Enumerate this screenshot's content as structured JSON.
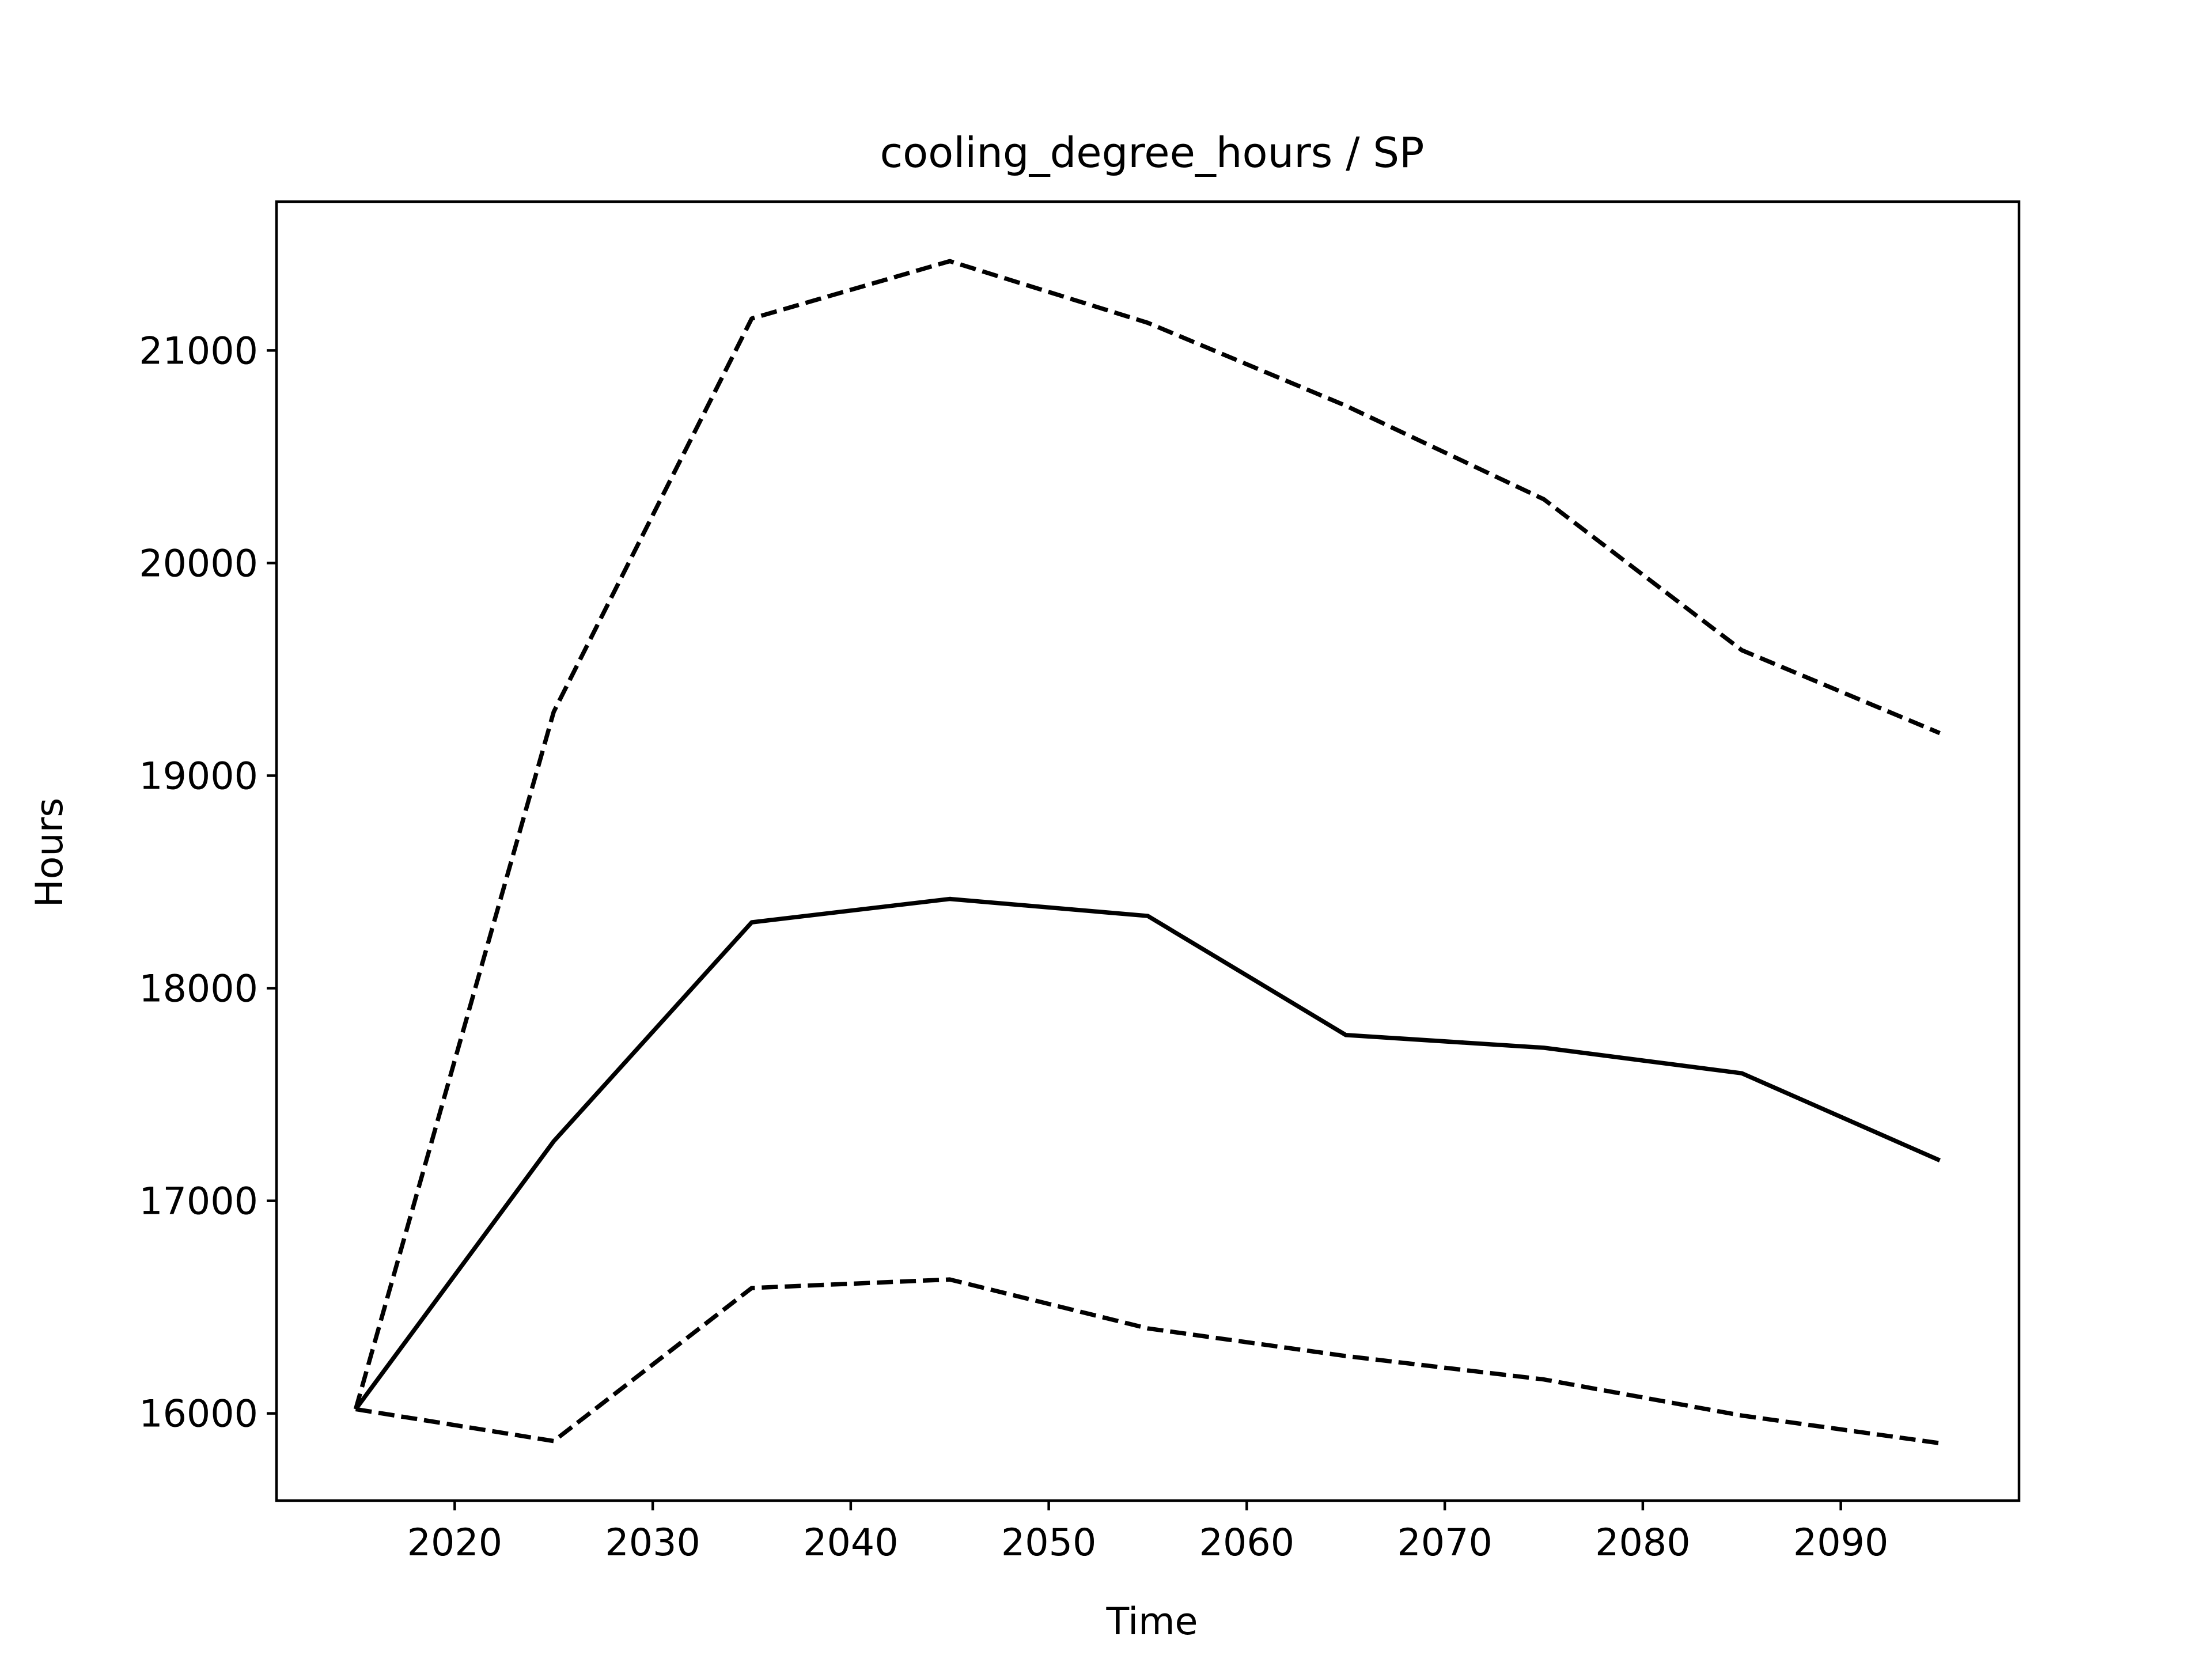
{
  "chart_data": {
    "type": "line",
    "title": "cooling_degree_hours / SP",
    "xlabel": "Time",
    "ylabel": "Hours",
    "x": [
      2015,
      2025,
      2035,
      2045,
      2055,
      2065,
      2075,
      2085,
      2095
    ],
    "xlim": [
      2011,
      2099
    ],
    "ylim": [
      15590,
      21700
    ],
    "xticks": [
      2020,
      2030,
      2040,
      2050,
      2060,
      2070,
      2080,
      2090
    ],
    "yticks": [
      16000,
      17000,
      18000,
      19000,
      20000,
      21000
    ],
    "grid": false,
    "series": [
      {
        "style": "dashed",
        "color": "#000000",
        "values": [
          16020,
          19300,
          21150,
          21420,
          21130,
          20740,
          20300,
          19590,
          19200
        ]
      },
      {
        "style": "solid",
        "color": "#000000",
        "values": [
          16020,
          17280,
          18310,
          18420,
          18340,
          17780,
          17720,
          17600,
          17190
        ]
      },
      {
        "style": "dashed",
        "color": "#000000",
        "values": [
          16020,
          15870,
          16590,
          16630,
          16400,
          16270,
          16160,
          15990,
          15860
        ]
      }
    ]
  }
}
